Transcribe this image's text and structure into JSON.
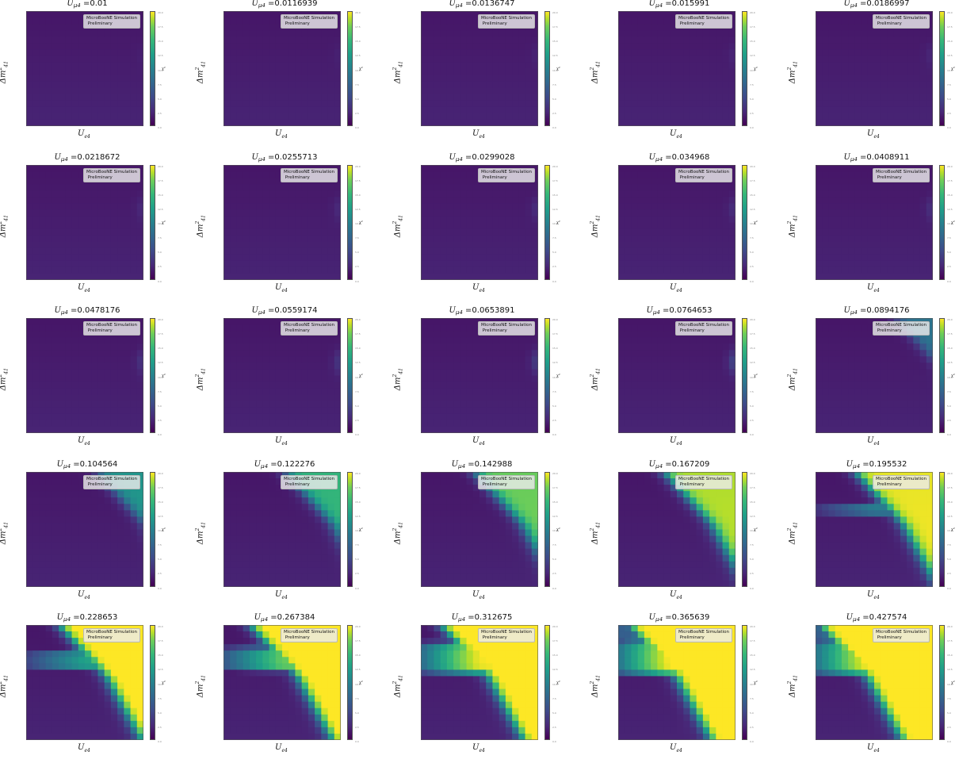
{
  "figure": {
    "title_prefix": "U",
    "title_sub": "μ4",
    "title_eq": " =",
    "badge_line1": "MicroBooNE Simulation",
    "badge_line2": "Preliminary",
    "xlabel_main": "U",
    "xlabel_sub": "e4",
    "ylabel_main": "Δm",
    "ylabel_sup": "2",
    "ylabel_sub": "41",
    "colorbar_label": "χ²"
  },
  "chart_data": {
    "type": "heatmap",
    "layout": "5x5 grid of panels",
    "colormap": "viridis",
    "colorbar_range": [
      0,
      20
    ],
    "colorbar_ticks": [
      "20.0",
      "17.5",
      "15.0",
      "12.5",
      "10.0",
      "7.5",
      "5.0",
      "2.5",
      "0.0"
    ],
    "grid_cells": [
      18,
      18
    ],
    "x_scale": "log",
    "y_scale": "log",
    "panels": [
      {
        "u_mu4": "0.01",
        "strength": 0.02,
        "band": 0
      },
      {
        "u_mu4": "0.0116939",
        "strength": 0.03,
        "band": 0
      },
      {
        "u_mu4": "0.0136747",
        "strength": 0.04,
        "band": 0
      },
      {
        "u_mu4": "0.015991",
        "strength": 0.05,
        "band": 0
      },
      {
        "u_mu4": "0.0186997",
        "strength": 0.06,
        "band": 0
      },
      {
        "u_mu4": "0.0218672",
        "strength": 0.07,
        "band": 0
      },
      {
        "u_mu4": "0.0255713",
        "strength": 0.08,
        "band": 0
      },
      {
        "u_mu4": "0.0299028",
        "strength": 0.09,
        "band": 0
      },
      {
        "u_mu4": "0.034968",
        "strength": 0.1,
        "band": 0
      },
      {
        "u_mu4": "0.0408911",
        "strength": 0.11,
        "band": 0
      },
      {
        "u_mu4": "0.0478176",
        "strength": 0.13,
        "band": 0
      },
      {
        "u_mu4": "0.0559174",
        "strength": 0.15,
        "band": 0
      },
      {
        "u_mu4": "0.0653891",
        "strength": 0.18,
        "band": 0
      },
      {
        "u_mu4": "0.0764653",
        "strength": 0.24,
        "band": 0
      },
      {
        "u_mu4": "0.0894176",
        "strength": 0.34,
        "band": 0
      },
      {
        "u_mu4": "0.104564",
        "strength": 0.48,
        "band": 0
      },
      {
        "u_mu4": "0.122276",
        "strength": 0.62,
        "band": 0
      },
      {
        "u_mu4": "0.142988",
        "strength": 0.74,
        "band": 0
      },
      {
        "u_mu4": "0.167209",
        "strength": 0.86,
        "band": 0
      },
      {
        "u_mu4": "0.195532",
        "strength": 0.95,
        "band": 0.1
      },
      {
        "u_mu4": "0.228653",
        "strength": 1.05,
        "band": 0.3
      },
      {
        "u_mu4": "0.267384",
        "strength": 1.15,
        "band": 0.55
      },
      {
        "u_mu4": "0.312675",
        "strength": 1.25,
        "band": 0.85
      },
      {
        "u_mu4": "0.365639",
        "strength": 1.4,
        "band": 1.0
      },
      {
        "u_mu4": "0.427574",
        "strength": 1.5,
        "band": 1.0
      }
    ]
  }
}
